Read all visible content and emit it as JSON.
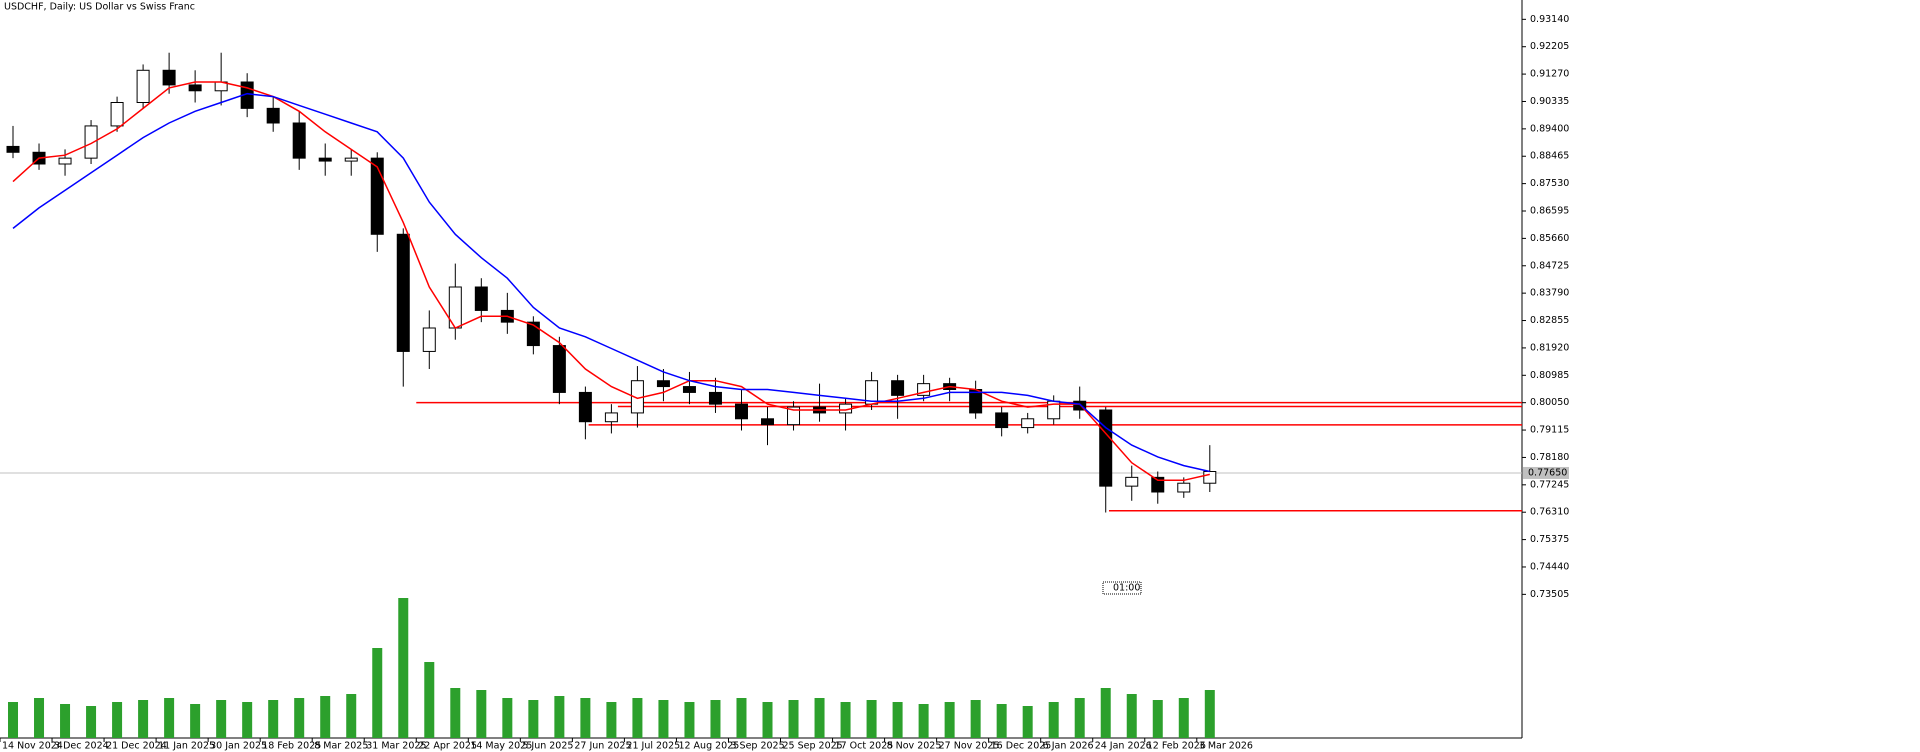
{
  "chart_data": {
    "type": "candlestick",
    "title": "USDCHF, Daily:  US Dollar vs Swiss Franc",
    "xlim": [
      0,
      468
    ],
    "xticks": [
      {
        "value": 0,
        "label": "14 Nov 2024"
      },
      {
        "value": 16,
        "label": "3 Dec 2024"
      },
      {
        "value": 32,
        "label": "21 Dec 2024"
      },
      {
        "value": 48,
        "label": "11 Jan 2025"
      },
      {
        "value": 64,
        "label": "30 Jan 2025"
      },
      {
        "value": 80,
        "label": "18 Feb 2025"
      },
      {
        "value": 96,
        "label": "8 Mar 2025"
      },
      {
        "value": 112,
        "label": "31 Mar 2025"
      },
      {
        "value": 128,
        "label": "22 Apr 2025"
      },
      {
        "value": 144,
        "label": "14 May 2025"
      },
      {
        "value": 160,
        "label": "5 Jun 2025"
      },
      {
        "value": 176,
        "label": "27 Jun 2025"
      },
      {
        "value": 192,
        "label": "21 Jul 2025"
      },
      {
        "value": 208,
        "label": "12 Aug 2025"
      },
      {
        "value": 224,
        "label": "3 Sep 2025"
      },
      {
        "value": 240,
        "label": "25 Sep 2025"
      },
      {
        "value": 256,
        "label": "17 Oct 2025"
      },
      {
        "value": 272,
        "label": "8 Nov 2025"
      },
      {
        "value": 288,
        "label": "27 Nov 2025"
      },
      {
        "value": 304,
        "label": "16 Dec 2025"
      },
      {
        "value": 320,
        "label": "6 Jan 2026"
      },
      {
        "value": 336,
        "label": "24 Jan 2026"
      },
      {
        "value": 352,
        "label": "12 Feb 2026"
      },
      {
        "value": 368,
        "label": "3 Mar 2026"
      }
    ],
    "ylim": [
      0.686,
      0.938
    ],
    "yticks": [
      {
        "value": 0.9314,
        "label": "0.93140"
      },
      0.92205,
      {
        "value": 0.9127,
        "label": "0.91270"
      },
      0.90335,
      {
        "value": 0.894,
        "label": "0.89400"
      },
      0.88465,
      {
        "value": 0.8753,
        "label": "0.87530"
      },
      0.86595,
      {
        "value": 0.8566,
        "label": "0.85660"
      },
      0.84725,
      {
        "value": 0.8379,
        "label": "0.83790"
      },
      0.82855,
      {
        "value": 0.8192,
        "label": "0.81920"
      },
      0.80985,
      {
        "value": 0.8005,
        "label": "0.80050"
      },
      0.79115,
      {
        "value": 0.7818,
        "label": "0.78180"
      },
      0.77245,
      {
        "value": 0.7631,
        "label": "0.76310"
      },
      0.75375,
      {
        "value": 0.7444,
        "label": "0.74440"
      },
      0.73505
    ],
    "current_price": {
      "value": 0.7765,
      "label": "0.77650"
    },
    "cursor_label": "01:00",
    "x": [
      4,
      12,
      20,
      28,
      36,
      44,
      52,
      60,
      68,
      76,
      84,
      92,
      100,
      108,
      116,
      124,
      132,
      140,
      148,
      156,
      164,
      172,
      180,
      188,
      196,
      204,
      212,
      220,
      228,
      236,
      244,
      252,
      260,
      268,
      276,
      284,
      292,
      300,
      308,
      316,
      324,
      332,
      340,
      348,
      356,
      364,
      372
    ],
    "open": [
      0.888,
      0.886,
      0.882,
      0.884,
      0.895,
      0.903,
      0.914,
      0.909,
      0.907,
      0.91,
      0.901,
      0.896,
      0.884,
      0.883,
      0.884,
      0.858,
      0.818,
      0.826,
      0.84,
      0.832,
      0.828,
      0.82,
      0.804,
      0.794,
      0.797,
      0.808,
      0.806,
      0.804,
      0.8,
      0.795,
      0.793,
      0.799,
      0.797,
      0.8,
      0.808,
      0.803,
      0.807,
      0.805,
      0.797,
      0.792,
      0.795,
      0.801,
      0.798,
      0.772,
      0.775,
      0.77,
      0.773
    ],
    "high": [
      0.895,
      0.889,
      0.887,
      0.897,
      0.905,
      0.916,
      0.92,
      0.914,
      0.92,
      0.913,
      0.905,
      0.9,
      0.889,
      0.887,
      0.886,
      0.86,
      0.832,
      0.848,
      0.843,
      0.838,
      0.83,
      0.823,
      0.806,
      0.8,
      0.813,
      0.812,
      0.811,
      0.809,
      0.805,
      0.799,
      0.801,
      0.807,
      0.802,
      0.811,
      0.81,
      0.81,
      0.809,
      0.808,
      0.799,
      0.797,
      0.803,
      0.806,
      0.799,
      0.779,
      0.777,
      0.775,
      0.786
    ],
    "low": [
      0.884,
      0.88,
      0.878,
      0.882,
      0.893,
      0.901,
      0.906,
      0.903,
      0.902,
      0.898,
      0.893,
      0.88,
      0.878,
      0.878,
      0.852,
      0.806,
      0.812,
      0.822,
      0.828,
      0.824,
      0.817,
      0.8,
      0.788,
      0.79,
      0.792,
      0.801,
      0.8,
      0.797,
      0.791,
      0.786,
      0.791,
      0.794,
      0.791,
      0.798,
      0.795,
      0.801,
      0.801,
      0.795,
      0.789,
      0.79,
      0.793,
      0.795,
      0.763,
      0.767,
      0.766,
      0.768,
      0.77
    ],
    "close": [
      0.886,
      0.882,
      0.884,
      0.895,
      0.903,
      0.914,
      0.909,
      0.907,
      0.91,
      0.901,
      0.896,
      0.884,
      0.883,
      0.884,
      0.858,
      0.818,
      0.826,
      0.84,
      0.832,
      0.828,
      0.82,
      0.804,
      0.794,
      0.797,
      0.808,
      0.806,
      0.804,
      0.8,
      0.795,
      0.793,
      0.799,
      0.797,
      0.8,
      0.808,
      0.803,
      0.807,
      0.805,
      0.797,
      0.792,
      0.795,
      0.801,
      0.798,
      0.772,
      0.775,
      0.77,
      0.773,
      0.777
    ],
    "series": [
      {
        "color": "#ff0000",
        "values": [
          0.876,
          0.884,
          0.885,
          0.889,
          0.894,
          0.901,
          0.908,
          0.91,
          0.91,
          0.908,
          0.905,
          0.9,
          0.893,
          0.887,
          0.881,
          0.862,
          0.84,
          0.826,
          0.83,
          0.83,
          0.827,
          0.821,
          0.812,
          0.806,
          0.802,
          0.804,
          0.808,
          0.808,
          0.806,
          0.8,
          0.798,
          0.798,
          0.798,
          0.8,
          0.802,
          0.804,
          0.806,
          0.805,
          0.801,
          0.799,
          0.8,
          0.8,
          0.79,
          0.78,
          0.774,
          0.774,
          0.776
        ]
      },
      {
        "color": "#0000ff",
        "values": [
          0.86,
          0.867,
          0.873,
          0.879,
          0.885,
          0.891,
          0.896,
          0.9,
          0.903,
          0.906,
          0.905,
          0.902,
          0.899,
          0.896,
          0.893,
          0.884,
          0.869,
          0.858,
          0.85,
          0.843,
          0.833,
          0.826,
          0.823,
          0.819,
          0.815,
          0.811,
          0.808,
          0.806,
          0.805,
          0.805,
          0.804,
          0.803,
          0.802,
          0.801,
          0.801,
          0.802,
          0.804,
          0.804,
          0.804,
          0.803,
          0.801,
          0.8,
          0.792,
          0.786,
          0.782,
          0.779,
          0.777
        ]
      }
    ],
    "volume": {
      "color": "#2ca02c",
      "vlim": [
        0,
        100
      ],
      "values": [
        18,
        20,
        17,
        16,
        18,
        19,
        20,
        17,
        19,
        18,
        19,
        20,
        21,
        22,
        45,
        70,
        38,
        25,
        24,
        20,
        19,
        21,
        20,
        18,
        20,
        19,
        18,
        19,
        20,
        18,
        19,
        20,
        18,
        19,
        18,
        17,
        18,
        19,
        17,
        16,
        18,
        20,
        25,
        22,
        19,
        20,
        24
      ]
    },
    "levels": {
      "color": "#ff0000",
      "values": [
        0.8005,
        0.7992,
        0.7929,
        0.7636
      ],
      "from": [
        128,
        190,
        181,
        341
      ]
    }
  }
}
